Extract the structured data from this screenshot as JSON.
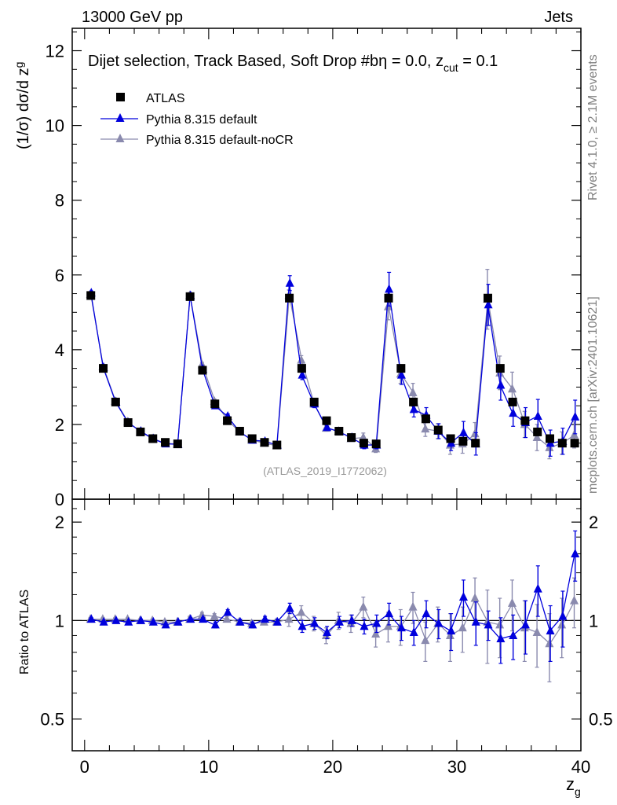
{
  "header": {
    "left_title": "13000 GeV pp",
    "right_title": "Jets",
    "plot_title_main": "Dijet selection, Track Based, Soft Drop #bη = 0.0, z",
    "plot_title_sub": "cut",
    "plot_title_end": " = 0.1"
  },
  "side_labels": {
    "rivet": "Rivet 4.1.0, ≥ 2.1M events",
    "mcplots": "mcplots.cern.ch [arXiv:2401.10621]"
  },
  "watermark": "(ATLAS_2019_I1772062)",
  "legend": {
    "atlas": "ATLAS",
    "pythia_default": "Pythia 8.315 default",
    "pythia_nocr": "Pythia 8.315 default-noCR"
  },
  "colors": {
    "data": "#000000",
    "pythia_default": "#0000dd",
    "pythia_nocr": "#8a8aae",
    "frame": "#000000"
  },
  "chart_data": {
    "type": "scatter",
    "x_label_main": "z",
    "x_label_sub": "g",
    "y_label_main": "(1/σ) dσ/d z",
    "y_label_sub": "g",
    "ratio_label": "Ratio to ATLAS",
    "xlim": [
      -1,
      40
    ],
    "ylim": [
      0,
      12.6
    ],
    "ratio_ylim": [
      0.4,
      2.35
    ],
    "x_ticks": [
      0,
      10,
      20,
      30,
      40
    ],
    "y_ticks": [
      0,
      2,
      4,
      6,
      8,
      10,
      12
    ],
    "ratio_ticks": [
      0.5,
      1,
      2
    ],
    "x": [
      0.5,
      1.5,
      2.5,
      3.5,
      4.5,
      5.5,
      6.5,
      7.5,
      8.5,
      9.5,
      10.5,
      11.5,
      12.5,
      13.5,
      14.5,
      15.5,
      16.5,
      17.5,
      18.5,
      19.5,
      20.5,
      21.5,
      22.5,
      23.5,
      24.5,
      25.5,
      26.5,
      27.5,
      28.5,
      29.5,
      30.5,
      31.5,
      32.5,
      33.5,
      34.5,
      35.5,
      36.5,
      37.5,
      38.5,
      39.5
    ],
    "series": [
      {
        "name": "ATLAS",
        "values": [
          5.45,
          3.5,
          2.6,
          2.05,
          1.8,
          1.62,
          1.52,
          1.48,
          5.42,
          3.45,
          2.55,
          2.1,
          1.82,
          1.62,
          1.52,
          1.45,
          5.38,
          3.5,
          2.6,
          2.1,
          1.82,
          1.65,
          1.5,
          1.48,
          5.38,
          3.5,
          2.6,
          2.15,
          1.85,
          1.62,
          1.55,
          1.5,
          5.38,
          3.5,
          2.6,
          2.1,
          1.8,
          1.62,
          1.5,
          1.5
        ],
        "errors": [
          0.05,
          0.05,
          0.05,
          0.05,
          0.05,
          0.05,
          0.05,
          0.05,
          0.05,
          0.05,
          0.05,
          0.05,
          0.05,
          0.05,
          0.05,
          0.05,
          0.05,
          0.05,
          0.05,
          0.05,
          0.05,
          0.05,
          0.05,
          0.05,
          0.05,
          0.05,
          0.05,
          0.05,
          0.05,
          0.05,
          0.05,
          0.05,
          0.05,
          0.05,
          0.05,
          0.05,
          0.05,
          0.05,
          0.05,
          0.05
        ]
      },
      {
        "name": "Pythia 8.315 default",
        "values": [
          5.52,
          3.52,
          2.6,
          2.05,
          1.82,
          1.62,
          1.48,
          1.47,
          5.45,
          3.48,
          2.5,
          2.22,
          1.8,
          1.58,
          1.55,
          1.45,
          5.78,
          3.32,
          2.55,
          1.92,
          1.8,
          1.65,
          1.45,
          1.45,
          5.62,
          3.32,
          2.4,
          2.25,
          1.82,
          1.5,
          1.78,
          1.48,
          5.2,
          3.05,
          2.3,
          2.05,
          2.22,
          1.5,
          1.55,
          2.2
        ],
        "errors": [
          0.05,
          0.05,
          0.05,
          0.05,
          0.05,
          0.05,
          0.05,
          0.05,
          0.06,
          0.06,
          0.06,
          0.06,
          0.06,
          0.06,
          0.06,
          0.06,
          0.2,
          0.12,
          0.1,
          0.08,
          0.08,
          0.08,
          0.1,
          0.1,
          0.45,
          0.25,
          0.2,
          0.2,
          0.2,
          0.2,
          0.3,
          0.3,
          0.55,
          0.4,
          0.35,
          0.4,
          0.45,
          0.35,
          0.35,
          0.45
        ],
        "ratio": [
          1.01,
          0.99,
          1.0,
          0.99,
          1.0,
          0.99,
          0.97,
          0.99,
          1.01,
          1.01,
          0.97,
          1.06,
          0.99,
          0.97,
          1.01,
          0.99,
          1.09,
          0.96,
          0.98,
          0.92,
          0.99,
          1.0,
          0.96,
          0.98,
          1.05,
          0.95,
          0.92,
          1.05,
          0.98,
          0.93,
          1.18,
          0.99,
          0.97,
          0.88,
          0.9,
          0.97,
          1.25,
          0.93,
          1.03,
          1.6
        ],
        "ratio_errors": [
          0.01,
          0.01,
          0.01,
          0.01,
          0.01,
          0.01,
          0.01,
          0.01,
          0.01,
          0.01,
          0.02,
          0.02,
          0.02,
          0.02,
          0.02,
          0.02,
          0.04,
          0.04,
          0.04,
          0.04,
          0.04,
          0.04,
          0.05,
          0.06,
          0.08,
          0.08,
          0.08,
          0.1,
          0.1,
          0.12,
          0.15,
          0.15,
          0.1,
          0.14,
          0.14,
          0.18,
          0.22,
          0.18,
          0.2,
          0.28
        ]
      },
      {
        "name": "Pythia 8.315 default-noCR",
        "values": [
          5.48,
          3.55,
          2.62,
          2.07,
          1.8,
          1.62,
          1.5,
          1.47,
          5.45,
          3.6,
          2.62,
          2.12,
          1.8,
          1.58,
          1.5,
          1.43,
          5.45,
          3.72,
          2.55,
          1.9,
          1.82,
          1.62,
          1.65,
          1.35,
          5.15,
          3.35,
          2.85,
          1.88,
          1.82,
          1.45,
          1.48,
          1.75,
          5.35,
          3.38,
          2.95,
          2.0,
          1.65,
          1.38,
          1.5,
          1.72
        ],
        "errors": [
          0.05,
          0.05,
          0.05,
          0.05,
          0.05,
          0.05,
          0.05,
          0.05,
          0.06,
          0.06,
          0.06,
          0.06,
          0.06,
          0.06,
          0.06,
          0.06,
          0.15,
          0.12,
          0.1,
          0.08,
          0.08,
          0.08,
          0.12,
          0.1,
          0.35,
          0.25,
          0.25,
          0.2,
          0.2,
          0.25,
          0.25,
          0.3,
          0.8,
          0.45,
          0.45,
          0.35,
          0.35,
          0.3,
          0.3,
          0.35
        ],
        "ratio": [
          1.01,
          1.01,
          1.01,
          1.01,
          1.0,
          1.0,
          0.99,
          0.99,
          1.01,
          1.04,
          1.03,
          1.01,
          0.99,
          0.98,
          0.99,
          0.99,
          1.01,
          1.06,
          0.98,
          0.9,
          1.0,
          0.98,
          1.1,
          0.91,
          0.96,
          0.96,
          1.1,
          0.87,
          0.98,
          0.9,
          0.95,
          1.17,
          0.99,
          0.97,
          1.13,
          0.95,
          0.92,
          0.85,
          0.97,
          1.15
        ],
        "ratio_errors": [
          0.01,
          0.01,
          0.01,
          0.01,
          0.01,
          0.01,
          0.01,
          0.01,
          0.02,
          0.02,
          0.02,
          0.02,
          0.02,
          0.02,
          0.02,
          0.02,
          0.05,
          0.05,
          0.05,
          0.05,
          0.06,
          0.06,
          0.08,
          0.08,
          0.1,
          0.12,
          0.12,
          0.12,
          0.12,
          0.15,
          0.15,
          0.18,
          0.25,
          0.2,
          0.2,
          0.2,
          0.2,
          0.2,
          0.2,
          0.2
        ]
      }
    ]
  }
}
